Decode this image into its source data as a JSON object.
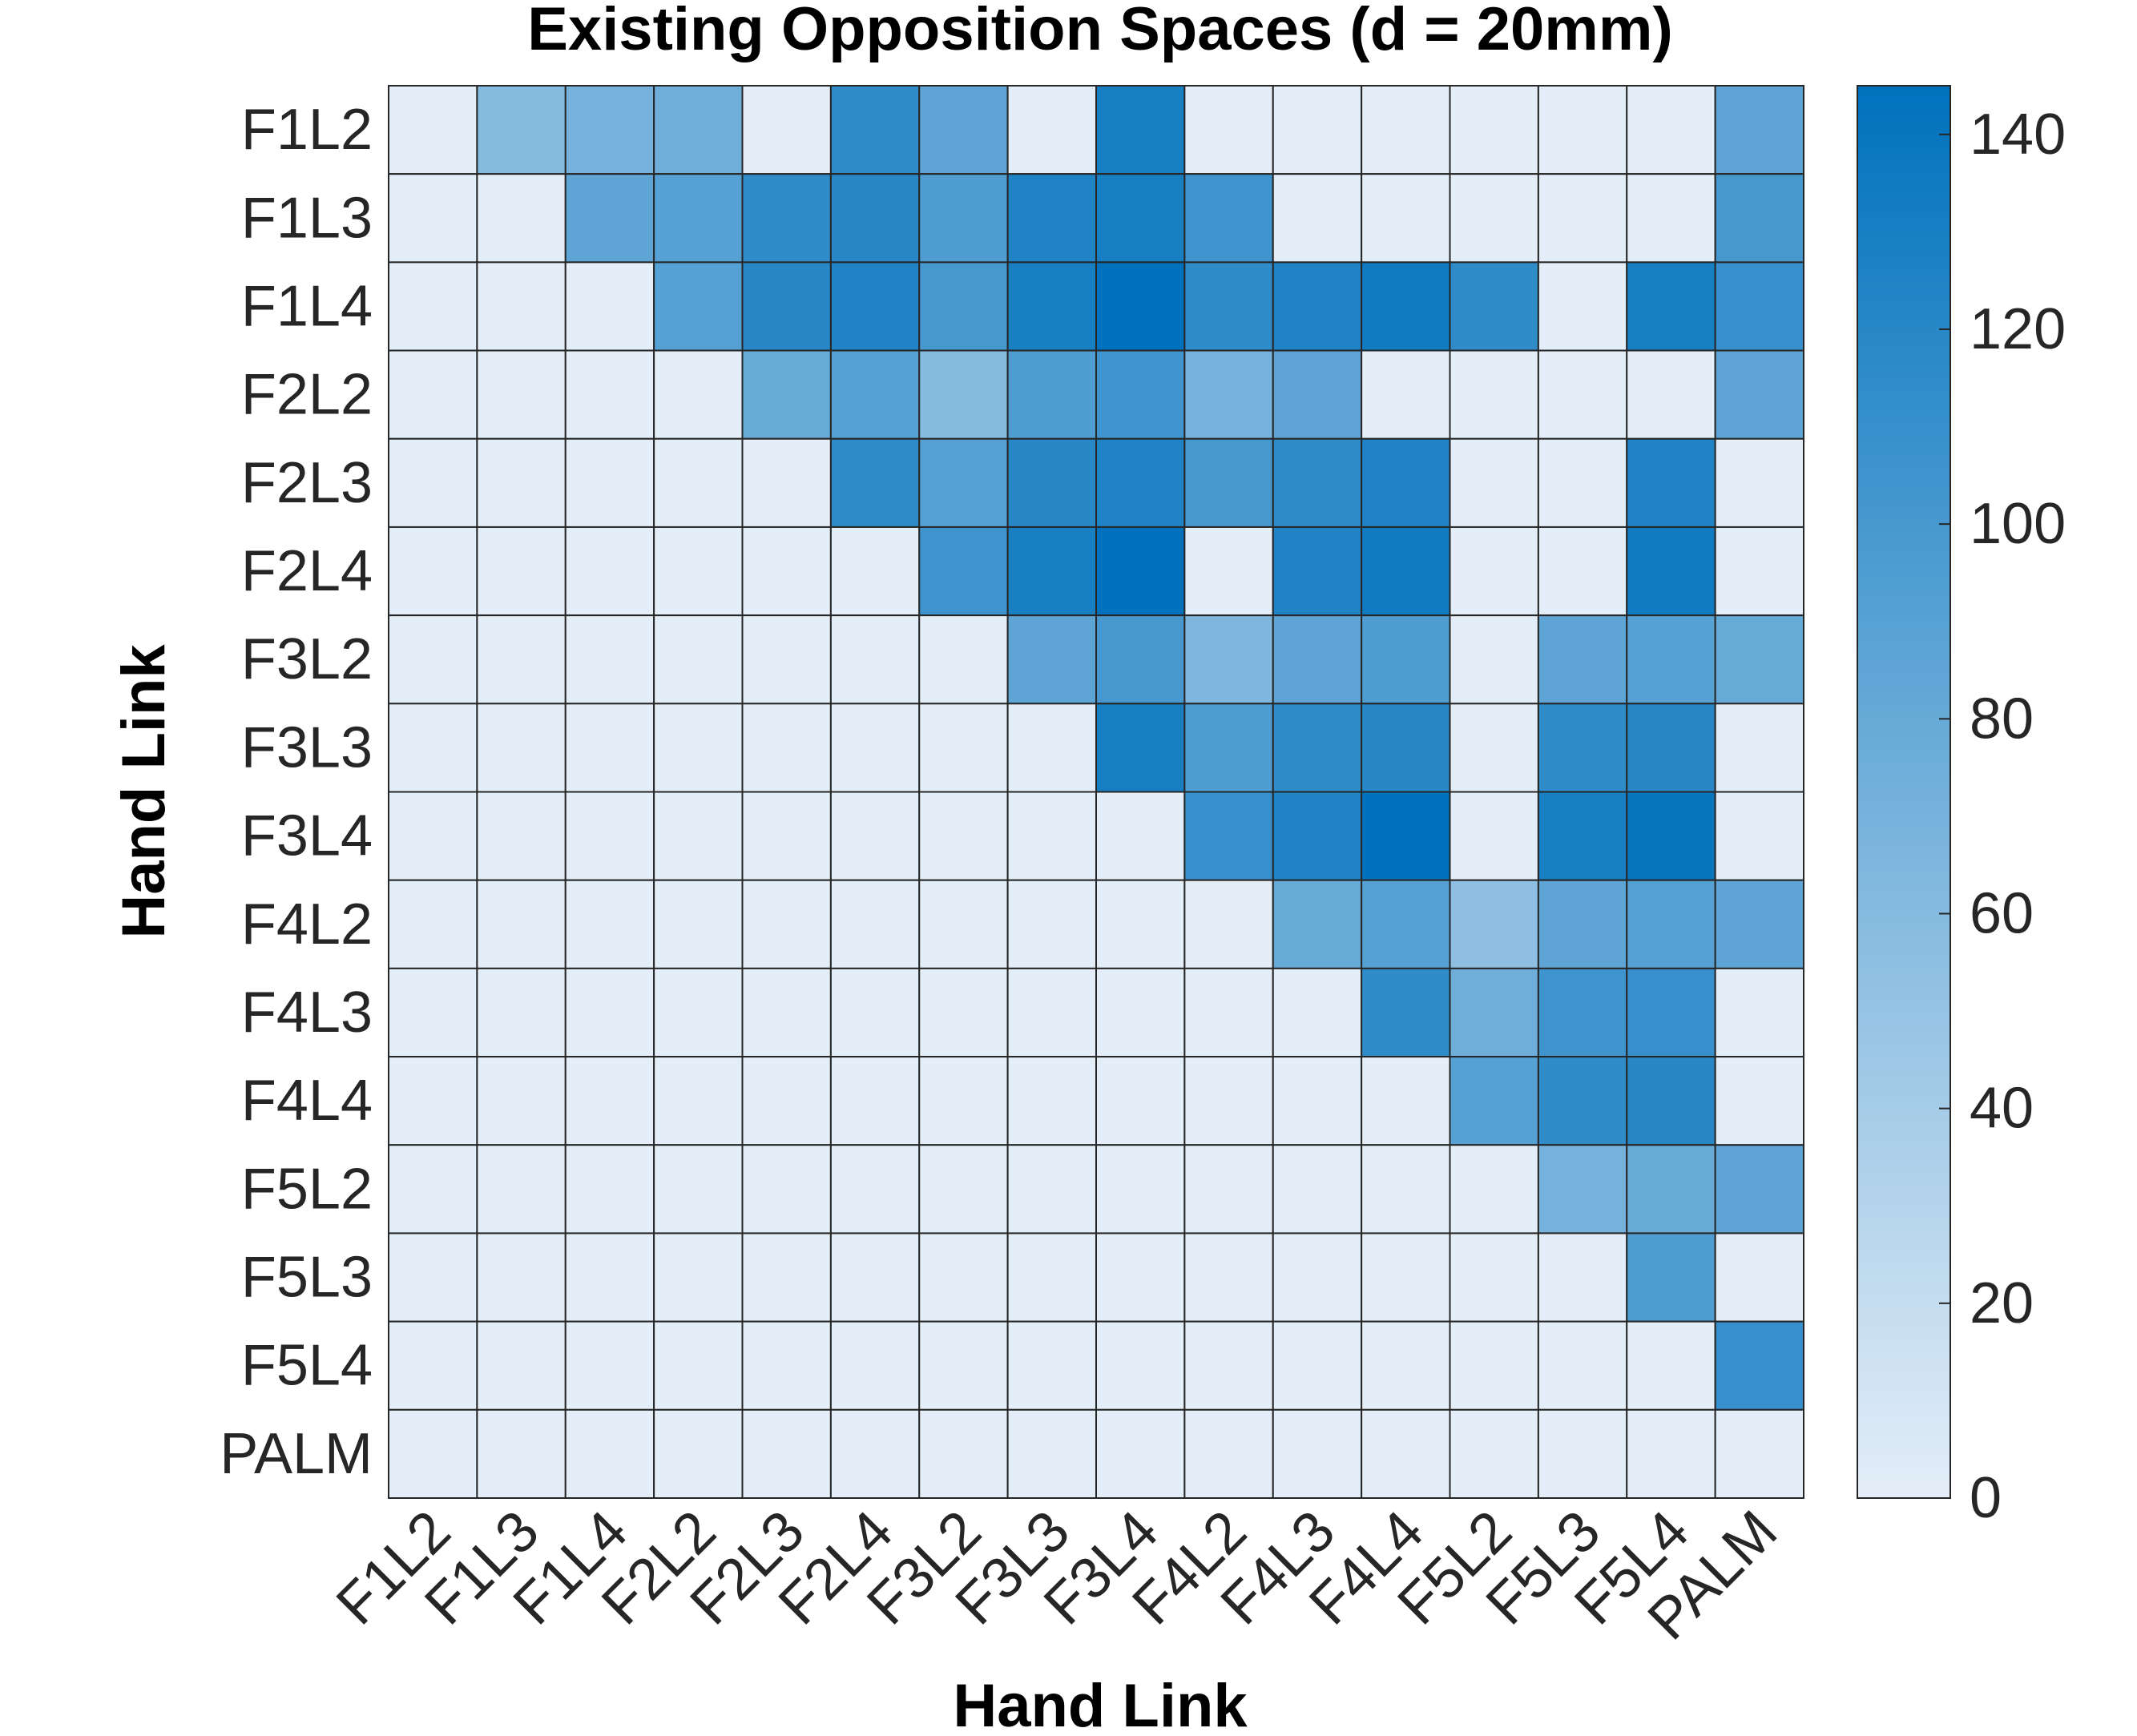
{
  "chart_data": {
    "type": "heatmap",
    "title": "Existing Opposition Spaces (d = 20mm)",
    "xlabel": "Hand Link",
    "ylabel": "Hand Link",
    "x_categories": [
      "F1L2",
      "F1L3",
      "F1L4",
      "F2L2",
      "F2L3",
      "F2L4",
      "F3L2",
      "F3L3",
      "F3L4",
      "F4L2",
      "F4L3",
      "F4L4",
      "F5L2",
      "F5L3",
      "F5L4",
      "PALM"
    ],
    "y_categories": [
      "F1L2",
      "F1L3",
      "F1L4",
      "F2L2",
      "F2L3",
      "F2L4",
      "F3L2",
      "F3L3",
      "F3L4",
      "F4L2",
      "F4L3",
      "F4L4",
      "F5L2",
      "F5L3",
      "F5L4",
      "PALM"
    ],
    "values": [
      [
        0,
        60,
        70,
        75,
        0,
        115,
        85,
        0,
        130,
        0,
        0,
        0,
        0,
        0,
        0,
        85
      ],
      [
        0,
        0,
        85,
        90,
        115,
        120,
        95,
        125,
        130,
        105,
        0,
        0,
        0,
        0,
        0,
        100
      ],
      [
        0,
        0,
        0,
        90,
        120,
        125,
        100,
        130,
        145,
        115,
        125,
        135,
        115,
        0,
        130,
        110
      ],
      [
        0,
        0,
        0,
        0,
        80,
        90,
        60,
        95,
        105,
        70,
        85,
        0,
        0,
        0,
        0,
        85
      ],
      [
        0,
        0,
        0,
        0,
        0,
        115,
        90,
        120,
        125,
        100,
        115,
        125,
        0,
        0,
        125,
        0
      ],
      [
        0,
        0,
        0,
        0,
        0,
        0,
        105,
        130,
        145,
        0,
        125,
        135,
        0,
        0,
        135,
        0
      ],
      [
        0,
        0,
        0,
        0,
        0,
        0,
        0,
        85,
        100,
        65,
        85,
        95,
        0,
        85,
        90,
        80
      ],
      [
        0,
        0,
        0,
        0,
        0,
        0,
        0,
        0,
        130,
        95,
        115,
        120,
        0,
        115,
        120,
        0
      ],
      [
        0,
        0,
        0,
        0,
        0,
        0,
        0,
        0,
        0,
        110,
        125,
        145,
        0,
        130,
        140,
        0
      ],
      [
        0,
        0,
        0,
        0,
        0,
        0,
        0,
        0,
        0,
        0,
        80,
        90,
        55,
        85,
        90,
        85
      ],
      [
        0,
        0,
        0,
        0,
        0,
        0,
        0,
        0,
        0,
        0,
        0,
        115,
        75,
        105,
        110,
        0
      ],
      [
        0,
        0,
        0,
        0,
        0,
        0,
        0,
        0,
        0,
        0,
        0,
        0,
        90,
        115,
        120,
        0
      ],
      [
        0,
        0,
        0,
        0,
        0,
        0,
        0,
        0,
        0,
        0,
        0,
        0,
        0,
        70,
        80,
        85
      ],
      [
        0,
        0,
        0,
        0,
        0,
        0,
        0,
        0,
        0,
        0,
        0,
        0,
        0,
        0,
        95,
        0
      ],
      [
        0,
        0,
        0,
        0,
        0,
        0,
        0,
        0,
        0,
        0,
        0,
        0,
        0,
        0,
        0,
        110
      ],
      [
        0,
        0,
        0,
        0,
        0,
        0,
        0,
        0,
        0,
        0,
        0,
        0,
        0,
        0,
        0,
        0
      ]
    ],
    "clim": [
      0,
      145
    ],
    "colorbar_ticks": [
      0,
      20,
      40,
      60,
      80,
      100,
      120,
      140
    ],
    "colormap": {
      "low": "#e4eef8",
      "high": "#0072bd"
    },
    "grid": true,
    "colorbar_position": "right"
  }
}
